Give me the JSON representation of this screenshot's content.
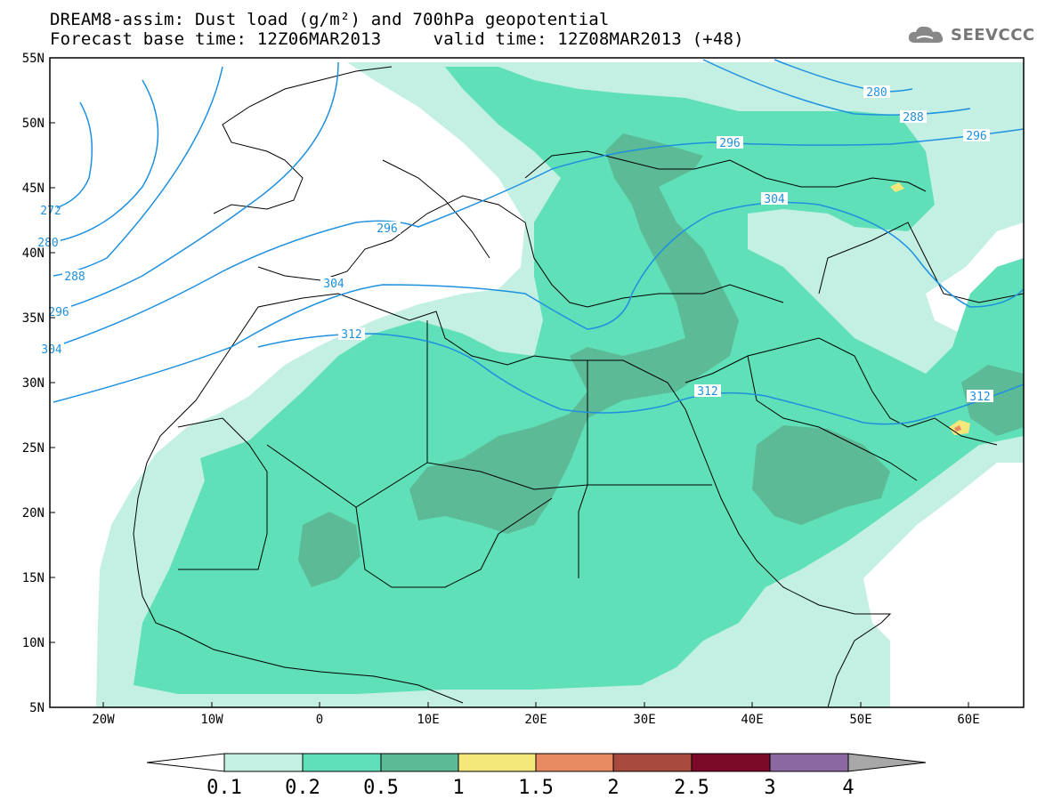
{
  "header": {
    "title_line1": "DREAM8-assim: Dust load (g/m²) and 700hPa geopotential",
    "title_line2": "Forecast base time: 12Z06MAR2013     valid time: 12Z08MAR2013 (+48)"
  },
  "logo": {
    "text": "SEEVCCC",
    "icon": "cloud-icon"
  },
  "map": {
    "lon_range": [
      -25,
      65
    ],
    "lat_range": [
      5,
      55
    ],
    "lat_labels": [
      "55N",
      "50N",
      "45N",
      "40N",
      "35N",
      "30N",
      "25N",
      "20N",
      "15N",
      "10N",
      "5N"
    ],
    "lon_labels": [
      "20W",
      "10W",
      "0",
      "10E",
      "20E",
      "30E",
      "40E",
      "50E",
      "60E"
    ],
    "contour_labels": [
      "272",
      "280",
      "288",
      "296",
      "304",
      "312",
      "280",
      "288",
      "296",
      "296",
      "304",
      "296",
      "304",
      "312",
      "312"
    ]
  },
  "legend": {
    "levels": [
      "0.1",
      "0.2",
      "0.5",
      "1",
      "1.5",
      "2",
      "2.5",
      "3",
      "4"
    ],
    "colors": [
      "#c4f0e4",
      "#5fe0b8",
      "#5cba96",
      "#f4e87a",
      "#e88a62",
      "#a84a3e",
      "#7a0a28",
      "#8c68a0",
      "#a8a8a8"
    ]
  },
  "colors": {
    "dust_01": "#c4f0e4",
    "dust_02": "#5fe0b8",
    "dust_05": "#5cba96",
    "dust_1": "#f4e87a",
    "dust_15": "#e88a62",
    "contour": "#1e90e0"
  }
}
